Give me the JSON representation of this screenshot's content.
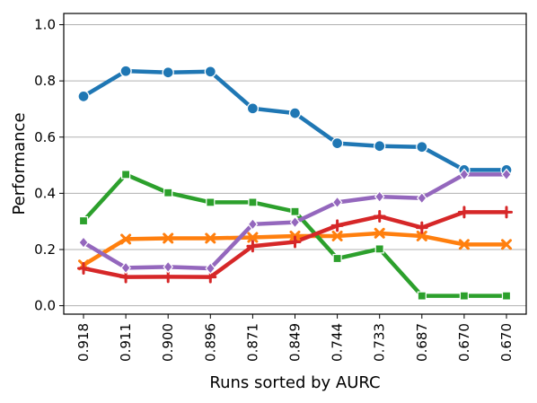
{
  "chart_data": {
    "type": "line",
    "title": "",
    "xlabel": "Runs sorted by AURC",
    "ylabel": "Performance",
    "categories": [
      "0.918",
      "0.911",
      "0.900",
      "0.896",
      "0.871",
      "0.849",
      "0.744",
      "0.733",
      "0.687",
      "0.670",
      "0.670"
    ],
    "ylim": [
      -0.03,
      1.04
    ],
    "yticks": [
      0.0,
      0.2,
      0.4,
      0.6,
      0.8,
      1.0
    ],
    "ytick_labels": [
      "0.0",
      "0.2",
      "0.4",
      "0.6",
      "0.8",
      "1.0"
    ],
    "grid": "horizontal",
    "legend": "none",
    "series": [
      {
        "color": "#1f77b4",
        "marker": "circle",
        "values": [
          0.745,
          0.835,
          0.83,
          0.833,
          0.702,
          0.685,
          0.578,
          0.568,
          0.565,
          0.483,
          0.483
        ]
      },
      {
        "color": "#ff7f0e",
        "marker": "x",
        "values": [
          0.145,
          0.237,
          0.24,
          0.24,
          0.243,
          0.248,
          0.248,
          0.258,
          0.248,
          0.218,
          0.218
        ]
      },
      {
        "color": "#2ca02c",
        "marker": "square",
        "values": [
          0.302,
          0.467,
          0.402,
          0.368,
          0.368,
          0.335,
          0.168,
          0.202,
          0.035,
          0.035,
          0.035
        ]
      },
      {
        "color": "#d62728",
        "marker": "plus",
        "values": [
          0.133,
          0.102,
          0.103,
          0.102,
          0.212,
          0.227,
          0.285,
          0.318,
          0.278,
          0.333,
          0.333
        ]
      },
      {
        "color": "#9467bd",
        "marker": "diamond",
        "values": [
          0.225,
          0.135,
          0.138,
          0.133,
          0.29,
          0.297,
          0.368,
          0.388,
          0.383,
          0.467,
          0.467
        ]
      }
    ]
  }
}
